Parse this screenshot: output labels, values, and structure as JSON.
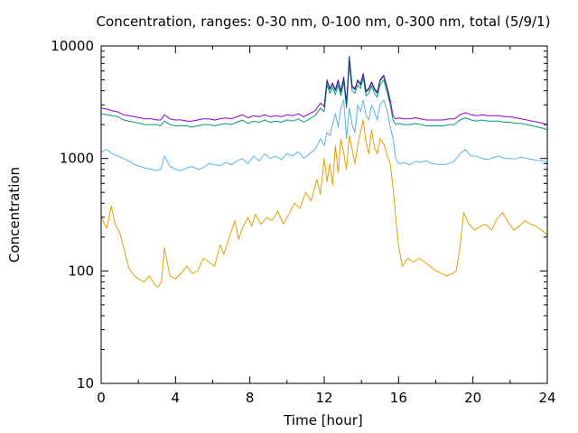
{
  "chart_data": {
    "type": "line",
    "title": "Concentration, ranges: 0-30 nm, 0-100 nm, 0-300 nm, total (5/9/1)",
    "xlabel": "Time [hour]",
    "ylabel": "Concentration",
    "xlim": [
      0,
      24
    ],
    "ylim": [
      10,
      10000
    ],
    "yscale": "log",
    "xticks": [
      0,
      4,
      8,
      12,
      16,
      20,
      24
    ],
    "xtick_labels": [
      "0",
      "4",
      "8",
      "12",
      "16",
      "20",
      "24"
    ],
    "yticks": [
      10,
      100,
      1000,
      10000
    ],
    "ytick_labels": [
      "10",
      "100",
      "1000",
      "10000"
    ],
    "grid": false,
    "legend": "none",
    "series": [
      {
        "color": "#e69f00",
        "x": [
          0.0,
          0.3,
          0.55,
          0.75,
          1.0,
          1.3,
          1.5,
          1.8,
          2.0,
          2.3,
          2.6,
          2.9,
          3.05,
          3.25,
          3.4,
          3.7,
          4.0,
          4.3,
          4.6,
          4.9,
          5.2,
          5.5,
          5.8,
          6.1,
          6.4,
          6.6,
          6.9,
          7.2,
          7.4,
          7.6,
          7.9,
          8.1,
          8.3,
          8.6,
          8.9,
          9.2,
          9.5,
          9.8,
          10.1,
          10.4,
          10.7,
          11.0,
          11.3,
          11.6,
          11.8,
          12.0,
          12.15,
          12.3,
          12.45,
          12.6,
          12.75,
          12.9,
          13.05,
          13.2,
          13.35,
          13.5,
          13.65,
          13.8,
          13.95,
          14.1,
          14.25,
          14.4,
          14.55,
          14.7,
          14.85,
          15.0,
          15.2,
          15.4,
          15.55,
          15.7,
          15.85,
          16.0,
          16.2,
          16.5,
          16.8,
          17.1,
          17.4,
          17.7,
          18.0,
          18.3,
          18.6,
          18.9,
          19.1,
          19.3,
          19.5,
          19.8,
          20.1,
          20.4,
          20.7,
          21.0,
          21.3,
          21.6,
          21.9,
          22.2,
          22.5,
          22.8,
          23.1,
          23.4,
          23.7,
          24.0
        ],
        "y": [
          300,
          240,
          380,
          260,
          220,
          140,
          105,
          90,
          85,
          80,
          90,
          75,
          72,
          80,
          160,
          90,
          85,
          95,
          110,
          95,
          100,
          130,
          120,
          110,
          170,
          140,
          200,
          280,
          190,
          240,
          300,
          250,
          320,
          260,
          300,
          280,
          340,
          260,
          320,
          400,
          360,
          500,
          420,
          650,
          480,
          1000,
          620,
          900,
          580,
          1300,
          750,
          1500,
          1100,
          800,
          1600,
          1200,
          900,
          1300,
          1700,
          2200,
          1400,
          1100,
          1800,
          1250,
          1100,
          1500,
          1350,
          1050,
          900,
          550,
          300,
          170,
          110,
          130,
          120,
          130,
          120,
          110,
          100,
          95,
          90,
          95,
          100,
          160,
          330,
          260,
          230,
          250,
          260,
          230,
          290,
          330,
          270,
          230,
          250,
          280,
          260,
          250,
          230,
          210
        ]
      },
      {
        "color": "#56b4e9",
        "x": [
          0.0,
          0.3,
          0.6,
          0.9,
          1.2,
          1.5,
          1.8,
          2.1,
          2.4,
          2.7,
          3.0,
          3.2,
          3.4,
          3.7,
          4.0,
          4.3,
          4.6,
          4.9,
          5.2,
          5.5,
          5.8,
          6.1,
          6.4,
          6.7,
          7.0,
          7.3,
          7.6,
          7.9,
          8.2,
          8.5,
          8.8,
          9.1,
          9.4,
          9.7,
          10.0,
          10.3,
          10.6,
          10.9,
          11.2,
          11.5,
          11.8,
          12.0,
          12.15,
          12.3,
          12.45,
          12.6,
          12.75,
          12.9,
          13.05,
          13.2,
          13.35,
          13.5,
          13.65,
          13.8,
          13.95,
          14.1,
          14.25,
          14.4,
          14.55,
          14.7,
          14.85,
          15.0,
          15.2,
          15.4,
          15.55,
          15.7,
          15.85,
          16.0,
          16.3,
          16.6,
          16.9,
          17.2,
          17.5,
          17.8,
          18.1,
          18.4,
          18.7,
          19.0,
          19.3,
          19.6,
          19.9,
          20.2,
          20.5,
          20.8,
          21.1,
          21.4,
          21.7,
          22.0,
          22.3,
          22.6,
          22.9,
          23.2,
          23.5,
          23.8,
          24.0
        ],
        "y": [
          1150,
          1200,
          1100,
          1050,
          1000,
          950,
          880,
          850,
          820,
          800,
          780,
          800,
          1050,
          850,
          800,
          780,
          820,
          850,
          800,
          830,
          900,
          880,
          860,
          920,
          880,
          950,
          1000,
          900,
          1050,
          950,
          1100,
          1000,
          1050,
          980,
          1100,
          1050,
          1150,
          1000,
          1100,
          1200,
          1500,
          1300,
          1700,
          1600,
          2000,
          2500,
          1900,
          2800,
          3300,
          1500,
          2800,
          2000,
          1700,
          3000,
          2600,
          3300,
          2400,
          2200,
          3000,
          2600,
          2200,
          3000,
          3300,
          2600,
          1900,
          1500,
          1000,
          900,
          920,
          880,
          940,
          930,
          950,
          900,
          890,
          880,
          900,
          950,
          1100,
          1200,
          1050,
          1050,
          1000,
          980,
          1020,
          1050,
          1000,
          1000,
          990,
          1030,
          1000,
          980,
          960,
          950,
          920
        ]
      },
      {
        "color": "#009e73",
        "x": [
          0.0,
          0.3,
          0.6,
          0.9,
          1.2,
          1.5,
          1.8,
          2.1,
          2.4,
          2.7,
          3.0,
          3.2,
          3.4,
          3.7,
          4.0,
          4.3,
          4.6,
          4.9,
          5.2,
          5.5,
          5.8,
          6.1,
          6.4,
          6.7,
          7.0,
          7.3,
          7.6,
          7.9,
          8.2,
          8.5,
          8.8,
          9.1,
          9.4,
          9.7,
          10.0,
          10.3,
          10.6,
          10.9,
          11.2,
          11.5,
          11.8,
          12.0,
          12.15,
          12.3,
          12.45,
          12.6,
          12.75,
          12.9,
          13.05,
          13.2,
          13.35,
          13.5,
          13.65,
          13.8,
          13.95,
          14.1,
          14.25,
          14.4,
          14.55,
          14.7,
          14.85,
          15.0,
          15.2,
          15.4,
          15.55,
          15.7,
          15.85,
          16.0,
          16.3,
          16.6,
          16.9,
          17.2,
          17.5,
          17.8,
          18.1,
          18.4,
          18.7,
          19.0,
          19.3,
          19.6,
          19.9,
          20.2,
          20.5,
          20.8,
          21.1,
          21.4,
          21.7,
          22.0,
          22.3,
          22.6,
          22.9,
          23.2,
          23.5,
          23.8,
          24.0
        ],
        "y": [
          2500,
          2450,
          2400,
          2350,
          2200,
          2150,
          2100,
          2050,
          2000,
          2000,
          2000,
          1950,
          2150,
          2000,
          1950,
          1950,
          1950,
          1900,
          1950,
          2000,
          2000,
          1950,
          2000,
          2050,
          2000,
          2100,
          2200,
          2050,
          2150,
          2100,
          2200,
          2100,
          2150,
          2100,
          2200,
          2150,
          2250,
          2100,
          2250,
          2400,
          2800,
          2600,
          4500,
          3800,
          4300,
          3700,
          4500,
          3600,
          4800,
          2800,
          7000,
          4000,
          3800,
          4500,
          4200,
          5200,
          3600,
          3800,
          4400,
          3800,
          3500,
          4500,
          5000,
          3800,
          3000,
          2200,
          2000,
          2050,
          2000,
          2000,
          2050,
          2000,
          1950,
          1950,
          1950,
          1950,
          2000,
          2000,
          2200,
          2300,
          2200,
          2150,
          2200,
          2150,
          2150,
          2150,
          2100,
          2100,
          2050,
          2050,
          2000,
          1950,
          1900,
          1850,
          1800
        ]
      },
      {
        "color": "#9400d3",
        "x": [
          0.0,
          0.3,
          0.6,
          0.9,
          1.2,
          1.5,
          1.8,
          2.1,
          2.4,
          2.7,
          3.0,
          3.2,
          3.4,
          3.7,
          4.0,
          4.3,
          4.6,
          4.9,
          5.2,
          5.5,
          5.8,
          6.1,
          6.4,
          6.7,
          7.0,
          7.3,
          7.6,
          7.9,
          8.2,
          8.5,
          8.8,
          9.1,
          9.4,
          9.7,
          10.0,
          10.3,
          10.6,
          10.9,
          11.2,
          11.5,
          11.8,
          12.0,
          12.15,
          12.3,
          12.45,
          12.6,
          12.75,
          12.9,
          13.05,
          13.2,
          13.35,
          13.5,
          13.65,
          13.8,
          13.95,
          14.1,
          14.25,
          14.4,
          14.55,
          14.7,
          14.85,
          15.0,
          15.2,
          15.4,
          15.55,
          15.7,
          15.85,
          16.0,
          16.3,
          16.6,
          16.9,
          17.2,
          17.5,
          17.8,
          18.1,
          18.4,
          18.7,
          19.0,
          19.3,
          19.6,
          19.9,
          20.2,
          20.5,
          20.8,
          21.1,
          21.4,
          21.7,
          22.0,
          22.3,
          22.6,
          22.9,
          23.2,
          23.5,
          23.8,
          24.0
        ],
        "y": [
          2800,
          2750,
          2650,
          2600,
          2450,
          2400,
          2350,
          2300,
          2250,
          2250,
          2200,
          2200,
          2450,
          2250,
          2200,
          2200,
          2150,
          2150,
          2200,
          2250,
          2250,
          2200,
          2250,
          2300,
          2250,
          2350,
          2450,
          2300,
          2400,
          2350,
          2450,
          2350,
          2400,
          2350,
          2450,
          2400,
          2500,
          2350,
          2500,
          2650,
          3100,
          2900,
          5000,
          4200,
          4700,
          4100,
          5000,
          4000,
          5300,
          3100,
          7800,
          4400,
          4200,
          5000,
          4600,
          5700,
          4000,
          4200,
          4800,
          4200,
          3900,
          5000,
          5500,
          4200,
          3300,
          2400,
          2250,
          2300,
          2250,
          2250,
          2300,
          2250,
          2200,
          2200,
          2200,
          2200,
          2250,
          2250,
          2450,
          2550,
          2450,
          2400,
          2450,
          2400,
          2400,
          2400,
          2350,
          2350,
          2300,
          2250,
          2200,
          2150,
          2100,
          2050,
          2000
        ]
      },
      {
        "color": "#1a3a7a",
        "x": [
          12.0,
          12.15,
          12.3,
          12.45,
          12.6,
          12.75,
          12.9,
          13.05,
          13.2,
          13.35,
          13.5,
          13.65,
          13.8,
          13.95,
          14.1,
          14.25,
          14.4,
          14.55,
          14.7,
          14.85,
          15.0,
          15.2,
          15.4,
          15.55
        ],
        "y": [
          2850,
          4900,
          4100,
          4600,
          4000,
          4900,
          3900,
          5200,
          3000,
          8100,
          4300,
          4100,
          4900,
          4500,
          5600,
          3900,
          4100,
          4700,
          4100,
          3800,
          4900,
          5400,
          4100,
          3200
        ]
      }
    ]
  }
}
